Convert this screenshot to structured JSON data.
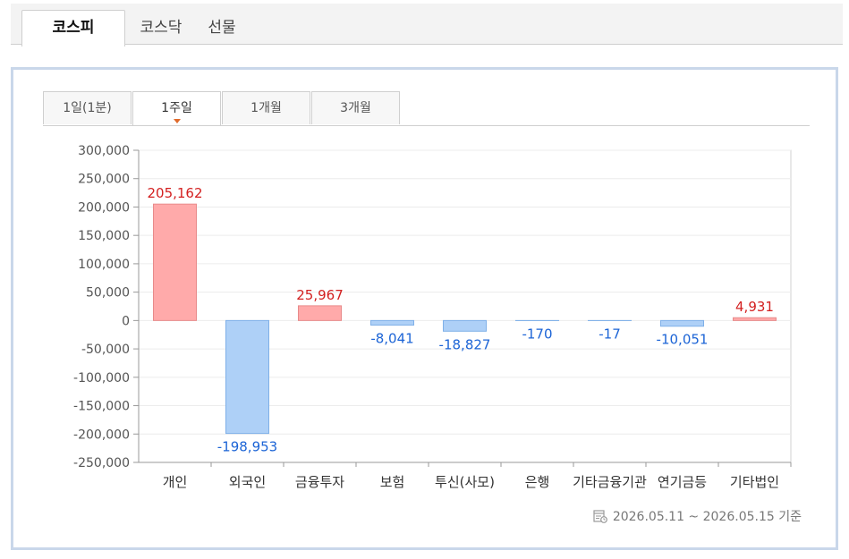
{
  "market_tabs": [
    "코스피",
    "코스닥",
    "선물"
  ],
  "period_tabs": [
    "1일(1분)",
    "1주일",
    "1개월",
    "3개월"
  ],
  "date_range": "2026.05.11 ~ 2026.05.15 기준",
  "colors": {
    "positive_fill": "#ffaaaa",
    "positive_stroke": "#e88a8a",
    "negative_fill": "#aed0f7",
    "negative_stroke": "#7fb0e8",
    "positive_text": "#d32020",
    "negative_text": "#1c64d6",
    "active_caret": "#e06a2b"
  },
  "chart_data": {
    "type": "bar",
    "categories": [
      "개인",
      "외국인",
      "금융투자",
      "보험",
      "투신(사모)",
      "은행",
      "기타금융기관",
      "연기금등",
      "기타법인"
    ],
    "values": [
      205162,
      -198953,
      25967,
      -8041,
      -18827,
      -170,
      -17,
      -10051,
      4931
    ],
    "value_labels": [
      "205,162",
      "-198,953",
      "25,967",
      "-8,041",
      "-18,827",
      "-170",
      "-17",
      "-10,051",
      "4,931"
    ],
    "ylim": [
      -250000,
      300000
    ],
    "yticks": [
      300000,
      250000,
      200000,
      150000,
      100000,
      50000,
      0,
      -50000,
      -100000,
      -150000,
      -200000,
      -250000
    ],
    "ytick_labels": [
      "300,000",
      "250,000",
      "200,000",
      "150,000",
      "100,000",
      "50,000",
      "0",
      "-50,000",
      "-100,000",
      "-150,000",
      "-200,000",
      "-250,000"
    ],
    "title": "",
    "xlabel": "",
    "ylabel": "",
    "grid": true
  }
}
